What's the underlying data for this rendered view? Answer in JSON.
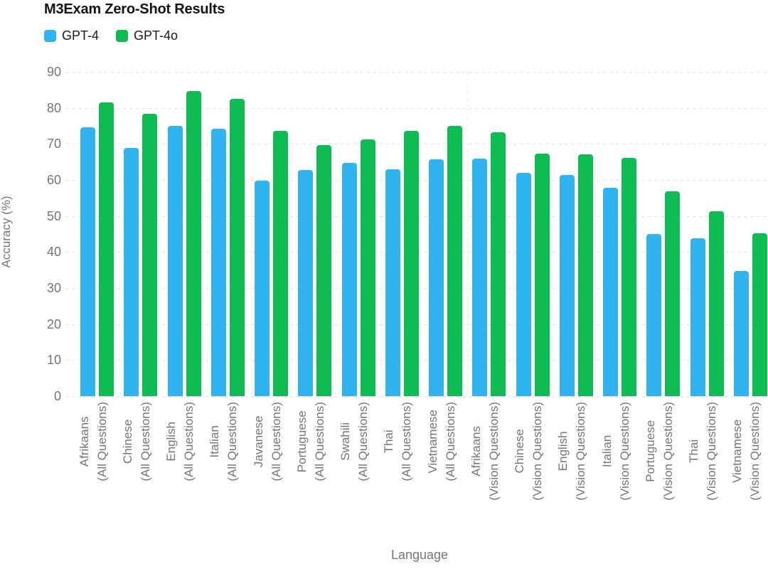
{
  "title": "M3Exam Zero-Shot Results",
  "chart_data": {
    "type": "bar",
    "title": "M3Exam Zero-Shot Results",
    "xlabel": "Language",
    "ylabel": "Accuracy (%)",
    "ylim": [
      0,
      90
    ],
    "yticks": [
      0,
      10,
      20,
      30,
      40,
      50,
      60,
      70,
      80,
      90
    ],
    "grid": "horizontal-dashed, one vertical dashed separator between question groups",
    "legend_position": "top-left",
    "categories": [
      {
        "name": "Afrikaans",
        "qualifier": "(All Questions)"
      },
      {
        "name": "Chinese",
        "qualifier": "(All Questions)"
      },
      {
        "name": "English",
        "qualifier": "(All Questions)"
      },
      {
        "name": "Italian",
        "qualifier": "(All Questions)"
      },
      {
        "name": "Javanese",
        "qualifier": "(All Questions)"
      },
      {
        "name": "Portuguese",
        "qualifier": "(All Questions)"
      },
      {
        "name": "Swahili",
        "qualifier": "(All Questions)"
      },
      {
        "name": "Thai",
        "qualifier": "(All Questions)"
      },
      {
        "name": "Vietnamese",
        "qualifier": "(All Questions)"
      },
      {
        "name": "Afrikaans",
        "qualifier": "(Vision Questions)"
      },
      {
        "name": "Chinese",
        "qualifier": "(Vision Questions)"
      },
      {
        "name": "English",
        "qualifier": "(Vision Questions)"
      },
      {
        "name": "Italian",
        "qualifier": "(Vision Questions)"
      },
      {
        "name": "Portuguese",
        "qualifier": "(Vision Questions)"
      },
      {
        "name": "Thai",
        "qualifier": "(Vision Questions)"
      },
      {
        "name": "Vietnamese",
        "qualifier": "(Vision Questions)"
      }
    ],
    "series": [
      {
        "name": "GPT-4",
        "color": "#30B4F1",
        "values": [
          74.6,
          68.8,
          75.1,
          74.2,
          59.9,
          62.7,
          64.7,
          62.9,
          65.8,
          65.9,
          62.0,
          61.4,
          57.9,
          45.1,
          43.9,
          34.8
        ]
      },
      {
        "name": "GPT-4o",
        "color": "#0EBC53",
        "values": [
          81.5,
          78.3,
          84.6,
          82.6,
          73.6,
          69.7,
          71.3,
          73.6,
          75.1,
          73.3,
          67.4,
          67.1,
          66.1,
          56.9,
          51.3,
          45.3
        ]
      }
    ],
    "group_separator_after_category_index": 8
  },
  "colors": {
    "gpt4_blue": "#30B4F1",
    "gpt4o_green": "#0EBC53",
    "grid_gray": "#e2e2e2",
    "text_gray": "#757575",
    "title_black": "#141414"
  }
}
